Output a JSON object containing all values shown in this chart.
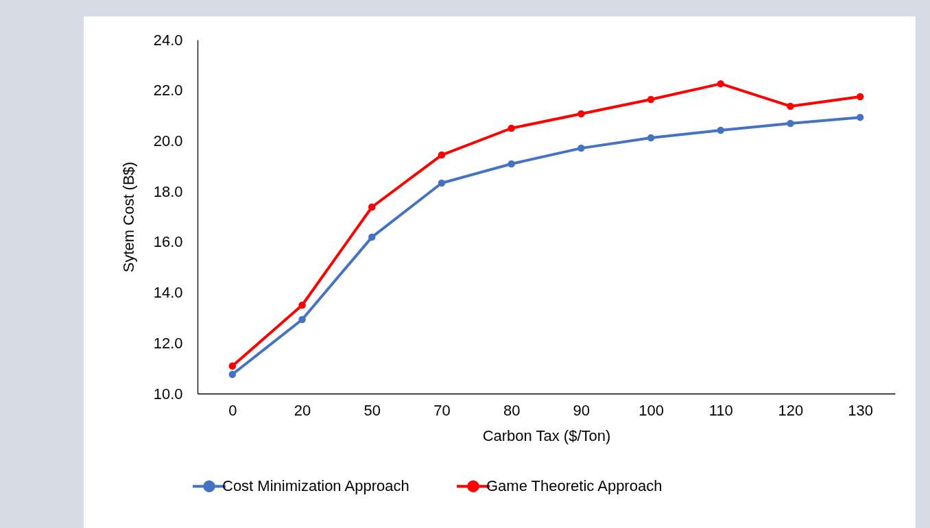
{
  "chart_data": {
    "type": "line",
    "xlabel": "Carbon Tax ($/Ton)",
    "ylabel": "Sytem Cost (B$)",
    "categories": [
      "0",
      "20",
      "50",
      "70",
      "80",
      "90",
      "100",
      "110",
      "120",
      "130"
    ],
    "series": [
      {
        "name": "Cost Minimization Approach",
        "color": "#4472c4",
        "values": [
          10.76,
          12.93,
          16.19,
          18.33,
          19.09,
          19.71,
          20.12,
          20.42,
          20.69,
          20.93
        ]
      },
      {
        "name": "Game Theoretic Approach",
        "color": "#ff0000",
        "values": [
          11.09,
          13.5,
          17.38,
          19.44,
          20.5,
          21.07,
          21.64,
          22.26,
          21.37,
          21.75
        ]
      }
    ],
    "ylim": [
      10,
      24
    ],
    "yticks": [
      {
        "value": 10,
        "label": "10.0"
      },
      {
        "value": 12,
        "label": "12.0"
      },
      {
        "value": 14,
        "label": "14.0"
      },
      {
        "value": 16,
        "label": "16.0"
      },
      {
        "value": 18,
        "label": "18.0"
      },
      {
        "value": 20,
        "label": "20.0"
      },
      {
        "value": 22,
        "label": "22.0"
      },
      {
        "value": 24,
        "label": "24.0"
      }
    ],
    "grid": false,
    "legend": "bottom",
    "marker": "circle",
    "line_style": "solid"
  }
}
